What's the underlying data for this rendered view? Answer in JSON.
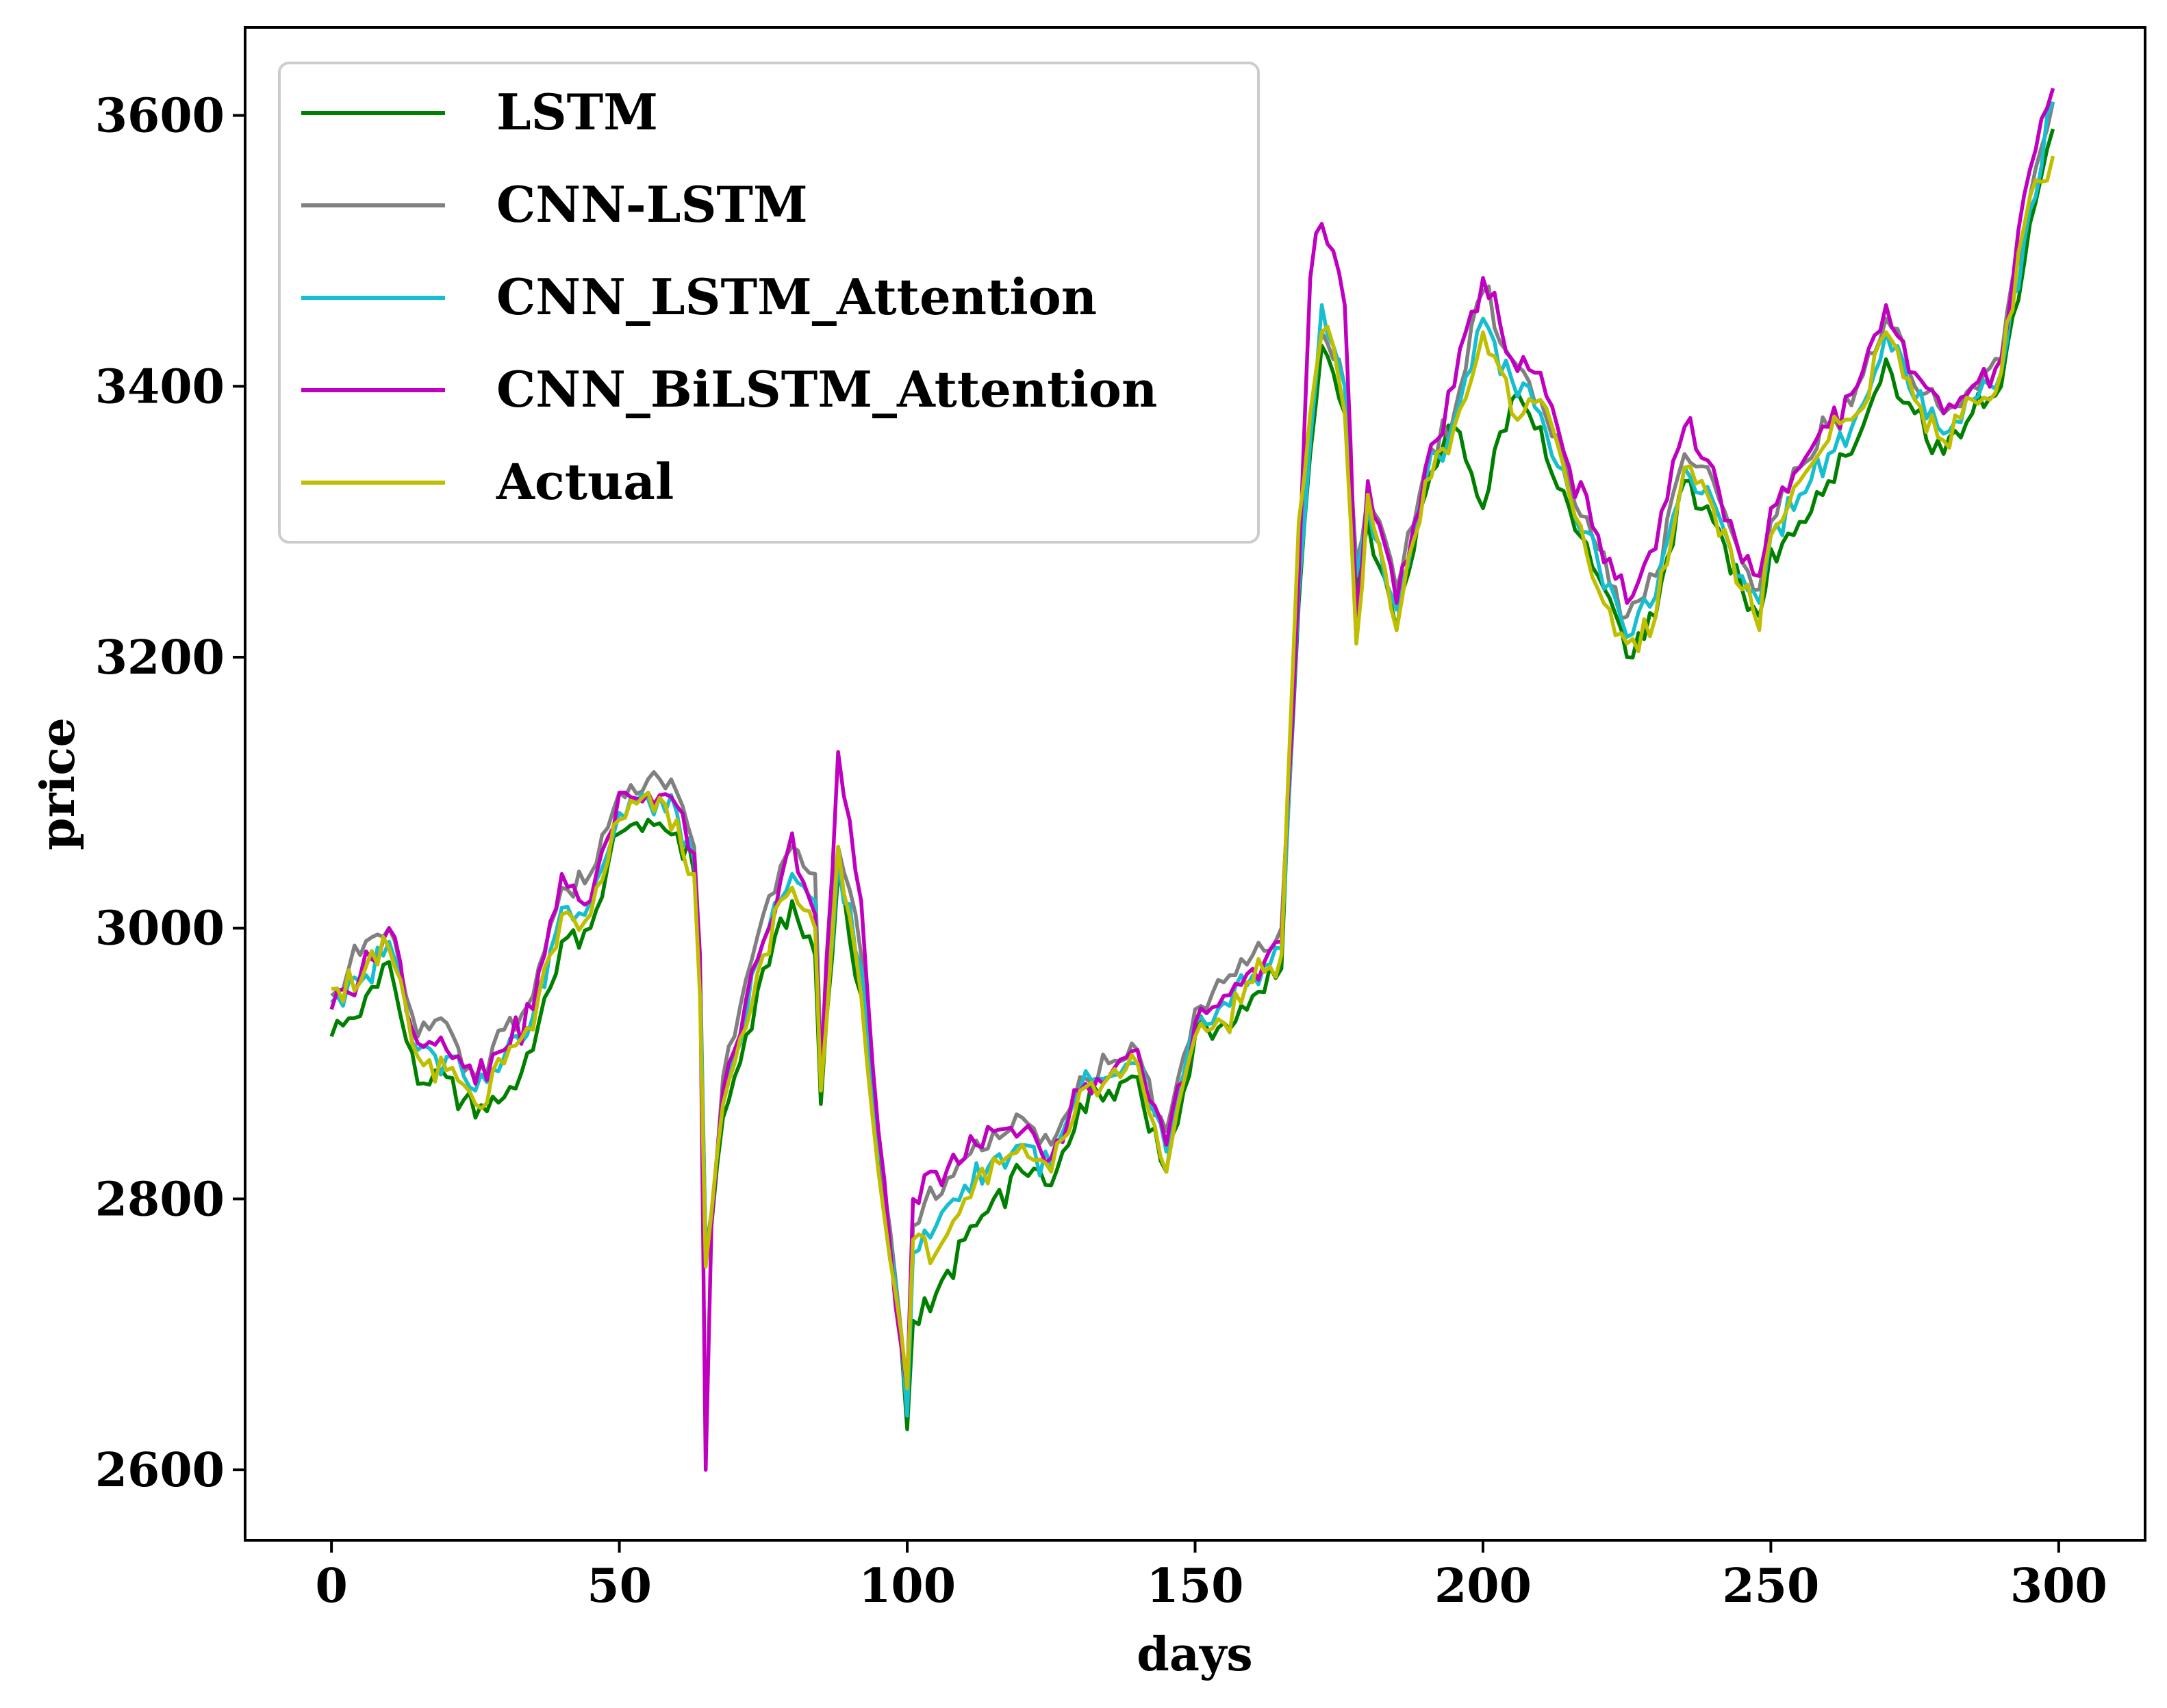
{
  "chart_data": {
    "type": "line",
    "xlabel": "days",
    "ylabel": "price",
    "xlim": [
      -15,
      315
    ],
    "ylim": [
      2548,
      3665
    ],
    "xticks": [
      0,
      50,
      100,
      150,
      200,
      250,
      300
    ],
    "yticks": [
      2600,
      2800,
      3000,
      3200,
      3400,
      3600
    ],
    "legend_position": "top-left",
    "grid": false,
    "keypoints_x": [
      0,
      5,
      10,
      15,
      20,
      25,
      30,
      35,
      40,
      45,
      50,
      55,
      60,
      63,
      64,
      65,
      66,
      68,
      70,
      75,
      80,
      84,
      85,
      88,
      92,
      95,
      98,
      99,
      100,
      101,
      105,
      110,
      115,
      120,
      125,
      130,
      135,
      140,
      145,
      150,
      155,
      160,
      165,
      168,
      170,
      172,
      174,
      176,
      178,
      180,
      185,
      190,
      195,
      200,
      205,
      210,
      215,
      220,
      225,
      230,
      235,
      240,
      245,
      248,
      250,
      255,
      260,
      265,
      270,
      275,
      280,
      285,
      290,
      295,
      299
    ],
    "series": [
      {
        "name": "LSTM",
        "color": "#008000",
        "keypoints_y": [
          2920,
          2935,
          2975,
          2885,
          2890,
          2860,
          2875,
          2910,
          2990,
          3000,
          3070,
          3080,
          3070,
          3040,
          2960,
          2760,
          2780,
          2860,
          2890,
          2970,
          3020,
          2980,
          2870,
          3040,
          2950,
          2830,
          2730,
          2690,
          2630,
          2710,
          2730,
          2770,
          2800,
          2820,
          2810,
          2870,
          2880,
          2890,
          2820,
          2920,
          2930,
          2950,
          2970,
          3240,
          3350,
          3430,
          3410,
          3380,
          3250,
          3300,
          3220,
          3320,
          3370,
          3310,
          3390,
          3370,
          3310,
          3260,
          3200,
          3230,
          3330,
          3300,
          3250,
          3230,
          3280,
          3300,
          3330,
          3360,
          3420,
          3380,
          3350,
          3380,
          3400,
          3520,
          3590
        ]
      },
      {
        "name": "CNN-LSTM",
        "color": "#808080",
        "keypoints_y": [
          2950,
          2980,
          3000,
          2920,
          2930,
          2890,
          2925,
          2950,
          3030,
          3040,
          3100,
          3110,
          3100,
          3060,
          2980,
          2760,
          2790,
          2890,
          2920,
          3010,
          3060,
          3040,
          2900,
          3060,
          2980,
          2850,
          2740,
          2700,
          2650,
          2780,
          2800,
          2830,
          2850,
          2860,
          2840,
          2890,
          2900,
          2910,
          2850,
          2940,
          2960,
          2980,
          3000,
          3260,
          3370,
          3440,
          3420,
          3400,
          3270,
          3320,
          3250,
          3340,
          3380,
          3470,
          3420,
          3390,
          3330,
          3280,
          3230,
          3260,
          3350,
          3330,
          3270,
          3250,
          3300,
          3340,
          3370,
          3400,
          3450,
          3400,
          3380,
          3400,
          3420,
          3540,
          3610
        ]
      },
      {
        "name": "CNN_LSTM_Attention",
        "color": "#17BECF",
        "keypoints_y": [
          2945,
          2960,
          2990,
          2910,
          2905,
          2880,
          2905,
          2935,
          3015,
          3020,
          3085,
          3095,
          3085,
          3050,
          2970,
          2760,
          2785,
          2875,
          2905,
          2990,
          3040,
          3020,
          2880,
          3050,
          2970,
          2840,
          2735,
          2695,
          2640,
          2760,
          2780,
          2810,
          2830,
          2840,
          2825,
          2880,
          2890,
          2900,
          2835,
          2930,
          2945,
          2965,
          2985,
          3250,
          3360,
          3460,
          3430,
          3400,
          3260,
          3310,
          3235,
          3330,
          3375,
          3450,
          3405,
          3380,
          3320,
          3270,
          3215,
          3245,
          3340,
          3315,
          3260,
          3240,
          3290,
          3320,
          3350,
          3380,
          3440,
          3390,
          3365,
          3390,
          3410,
          3530,
          3610
        ]
      },
      {
        "name": "CNN_BiLSTM_Attention",
        "color": "#BF00BF",
        "keypoints_y": [
          2940,
          2965,
          3000,
          2915,
          2910,
          2885,
          2910,
          2940,
          3040,
          3020,
          3100,
          3100,
          3090,
          3055,
          2980,
          2600,
          2780,
          2880,
          2910,
          2990,
          3070,
          3010,
          2890,
          3130,
          3020,
          2850,
          2720,
          2690,
          2660,
          2800,
          2820,
          2830,
          2850,
          2850,
          2830,
          2880,
          2890,
          2910,
          2840,
          2930,
          2950,
          2970,
          2990,
          3260,
          3480,
          3520,
          3500,
          3460,
          3230,
          3330,
          3240,
          3340,
          3400,
          3480,
          3420,
          3410,
          3340,
          3290,
          3240,
          3280,
          3370,
          3340,
          3270,
          3260,
          3310,
          3340,
          3370,
          3400,
          3460,
          3410,
          3380,
          3400,
          3420,
          3560,
          3620
        ]
      },
      {
        "name": "Actual",
        "color": "#BFBF00",
        "keypoints_y": [
          2955,
          2960,
          2985,
          2905,
          2895,
          2870,
          2900,
          2925,
          3010,
          3010,
          3080,
          3100,
          3080,
          3040,
          2950,
          2750,
          2790,
          2870,
          2900,
          2980,
          3030,
          3000,
          2880,
          3060,
          2950,
          2820,
          2730,
          2700,
          2660,
          2770,
          2760,
          2800,
          2830,
          2840,
          2820,
          2880,
          2890,
          2900,
          2820,
          2920,
          2930,
          2960,
          2980,
          3300,
          3380,
          3440,
          3430,
          3380,
          3210,
          3320,
          3220,
          3330,
          3370,
          3440,
          3380,
          3390,
          3320,
          3250,
          3210,
          3230,
          3340,
          3310,
          3250,
          3220,
          3290,
          3330,
          3360,
          3380,
          3440,
          3390,
          3360,
          3390,
          3410,
          3540,
          3570
        ]
      }
    ]
  }
}
